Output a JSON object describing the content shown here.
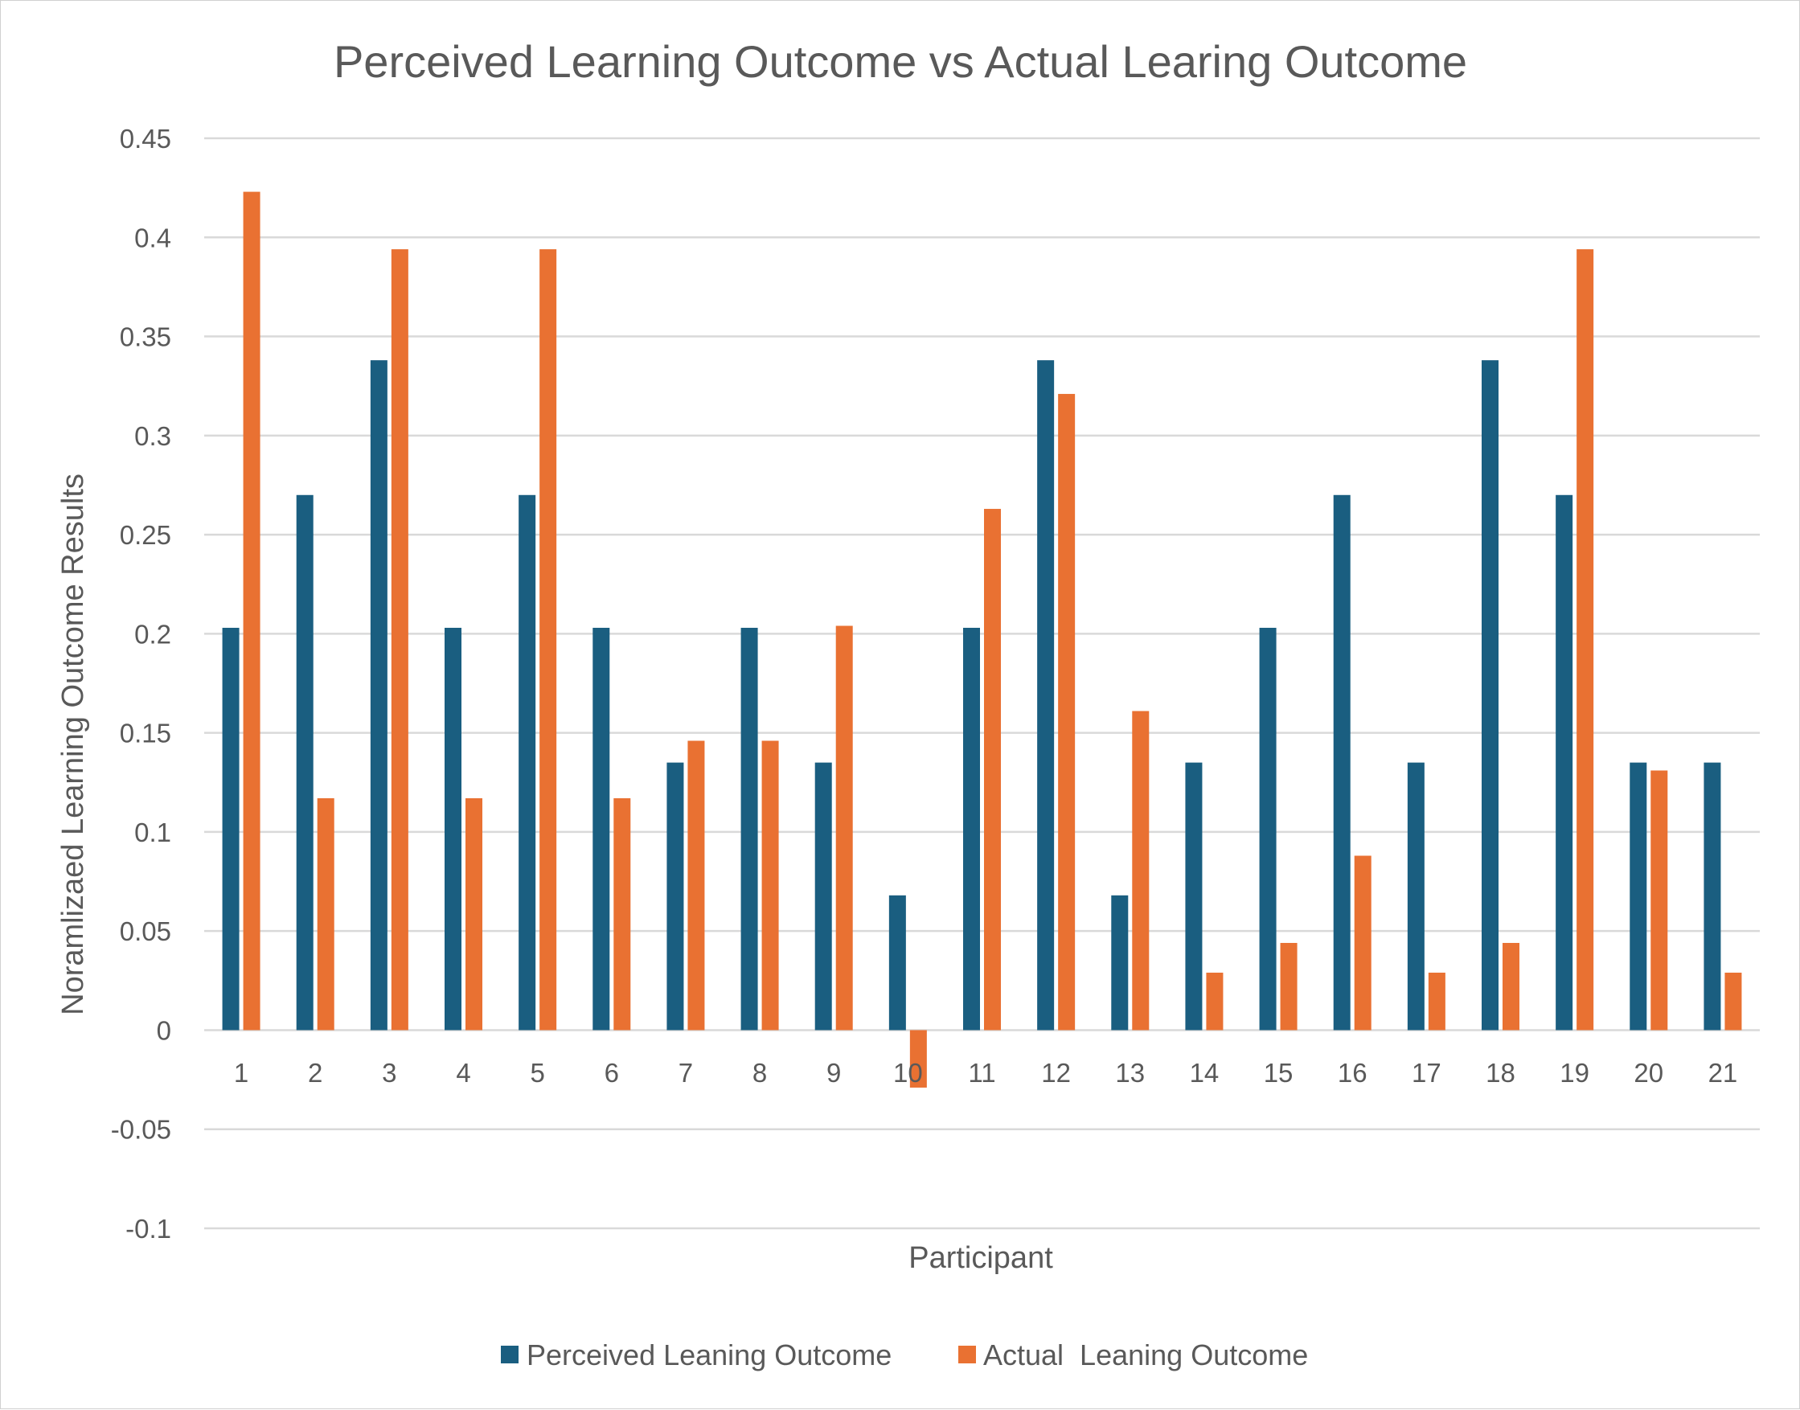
{
  "chart_data": {
    "type": "bar",
    "title": "Perceived Learning Outcome vs Actual Learing Outcome",
    "xlabel": "Participant",
    "ylabel": "Noramlizaed Learning Outcome Results",
    "ylim": [
      -0.1,
      0.45
    ],
    "yticks": [
      -0.1,
      -0.05,
      0,
      0.05,
      0.1,
      0.15,
      0.2,
      0.25,
      0.3,
      0.35,
      0.4,
      0.45
    ],
    "ytick_labels": [
      "-0.1",
      "-0.05",
      "0",
      "0.05",
      "0.1",
      "0.15",
      "0.2",
      "0.25",
      "0.3",
      "0.35",
      "0.4",
      "0.45"
    ],
    "grid": true,
    "legend_position": "bottom",
    "categories": [
      "1",
      "2",
      "3",
      "4",
      "5",
      "6",
      "7",
      "8",
      "9",
      "10",
      "11",
      "12",
      "13",
      "14",
      "15",
      "16",
      "17",
      "18",
      "19",
      "20",
      "21"
    ],
    "series": [
      {
        "name": "Perceived Leaning Outcome",
        "color": "#1a5e80",
        "values": [
          0.203,
          0.27,
          0.338,
          0.203,
          0.27,
          0.203,
          0.135,
          0.203,
          0.135,
          0.068,
          0.203,
          0.338,
          0.068,
          0.135,
          0.203,
          0.27,
          0.135,
          0.338,
          0.27,
          0.135,
          0.135
        ]
      },
      {
        "name": "Actual  Leaning Outcome",
        "color": "#e97132",
        "values": [
          0.423,
          0.117,
          0.394,
          0.117,
          0.394,
          0.117,
          0.146,
          0.146,
          0.204,
          -0.029,
          0.263,
          0.321,
          0.161,
          0.029,
          0.044,
          0.088,
          0.029,
          0.044,
          0.394,
          0.131,
          0.029
        ]
      }
    ]
  }
}
